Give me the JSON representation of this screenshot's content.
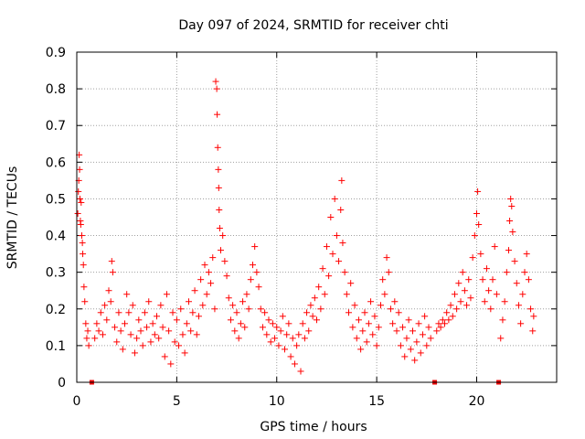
{
  "chart_data": {
    "type": "scatter",
    "title": "Day 097 of 2024, SRMTID for receiver chti",
    "xlabel": "GPS time / hours",
    "ylabel": "SRMTID / TECUs",
    "xlim": [
      0,
      24
    ],
    "ylim": [
      0,
      0.9
    ],
    "xticks": [
      0,
      5,
      10,
      15,
      20
    ],
    "xtick_labels": [
      "0",
      "5",
      "10",
      "15",
      "20"
    ],
    "yticks": [
      0,
      0.1,
      0.2,
      0.3,
      0.4,
      0.5,
      0.6,
      0.7,
      0.8,
      0.9
    ],
    "ytick_labels": [
      "0",
      "0.1",
      "0.2",
      "0.3",
      "0.4",
      "0.5",
      "0.6",
      "0.7",
      "0.8",
      "0.9"
    ],
    "grid": true,
    "marker": "plus",
    "color": "#ff0000",
    "marker_color": "#ee0000",
    "gap_markers_x": [
      0.75,
      17.9,
      21.1
    ],
    "series": [
      {
        "name": "SRMTID",
        "points": [
          [
            0.05,
            0.46
          ],
          [
            0.08,
            0.52
          ],
          [
            0.1,
            0.55
          ],
          [
            0.12,
            0.62
          ],
          [
            0.14,
            0.58
          ],
          [
            0.16,
            0.5
          ],
          [
            0.18,
            0.44
          ],
          [
            0.2,
            0.43
          ],
          [
            0.22,
            0.49
          ],
          [
            0.25,
            0.4
          ],
          [
            0.28,
            0.38
          ],
          [
            0.3,
            0.35
          ],
          [
            0.33,
            0.32
          ],
          [
            0.36,
            0.26
          ],
          [
            0.4,
            0.22
          ],
          [
            0.45,
            0.16
          ],
          [
            0.5,
            0.12
          ],
          [
            0.55,
            0.14
          ],
          [
            0.6,
            0.1
          ],
          [
            0.9,
            0.12
          ],
          [
            1.0,
            0.16
          ],
          [
            1.1,
            0.14
          ],
          [
            1.2,
            0.19
          ],
          [
            1.3,
            0.13
          ],
          [
            1.4,
            0.21
          ],
          [
            1.5,
            0.17
          ],
          [
            1.6,
            0.25
          ],
          [
            1.7,
            0.22
          ],
          [
            1.75,
            0.33
          ],
          [
            1.8,
            0.3
          ],
          [
            1.9,
            0.15
          ],
          [
            2.0,
            0.11
          ],
          [
            2.1,
            0.19
          ],
          [
            2.2,
            0.14
          ],
          [
            2.3,
            0.09
          ],
          [
            2.4,
            0.16
          ],
          [
            2.5,
            0.24
          ],
          [
            2.6,
            0.19
          ],
          [
            2.7,
            0.13
          ],
          [
            2.8,
            0.21
          ],
          [
            2.9,
            0.08
          ],
          [
            3.0,
            0.12
          ],
          [
            3.1,
            0.17
          ],
          [
            3.2,
            0.14
          ],
          [
            3.3,
            0.1
          ],
          [
            3.4,
            0.19
          ],
          [
            3.5,
            0.15
          ],
          [
            3.6,
            0.22
          ],
          [
            3.7,
            0.11
          ],
          [
            3.8,
            0.16
          ],
          [
            3.9,
            0.13
          ],
          [
            4.0,
            0.18
          ],
          [
            4.1,
            0.12
          ],
          [
            4.2,
            0.21
          ],
          [
            4.3,
            0.15
          ],
          [
            4.4,
            0.07
          ],
          [
            4.5,
            0.24
          ],
          [
            4.6,
            0.14
          ],
          [
            4.7,
            0.05
          ],
          [
            4.8,
            0.19
          ],
          [
            4.9,
            0.11
          ],
          [
            5.0,
            0.17
          ],
          [
            5.1,
            0.1
          ],
          [
            5.2,
            0.2
          ],
          [
            5.3,
            0.13
          ],
          [
            5.4,
            0.08
          ],
          [
            5.5,
            0.16
          ],
          [
            5.6,
            0.22
          ],
          [
            5.7,
            0.14
          ],
          [
            5.8,
            0.19
          ],
          [
            5.9,
            0.25
          ],
          [
            6.0,
            0.13
          ],
          [
            6.1,
            0.18
          ],
          [
            6.2,
            0.28
          ],
          [
            6.3,
            0.21
          ],
          [
            6.4,
            0.32
          ],
          [
            6.5,
            0.24
          ],
          [
            6.6,
            0.3
          ],
          [
            6.7,
            0.27
          ],
          [
            6.8,
            0.34
          ],
          [
            6.9,
            0.2
          ],
          [
            6.95,
            0.82
          ],
          [
            7.0,
            0.8
          ],
          [
            7.02,
            0.73
          ],
          [
            7.05,
            0.64
          ],
          [
            7.08,
            0.58
          ],
          [
            7.1,
            0.53
          ],
          [
            7.12,
            0.47
          ],
          [
            7.15,
            0.42
          ],
          [
            7.2,
            0.36
          ],
          [
            7.3,
            0.4
          ],
          [
            7.4,
            0.33
          ],
          [
            7.5,
            0.29
          ],
          [
            7.6,
            0.23
          ],
          [
            7.7,
            0.17
          ],
          [
            7.8,
            0.21
          ],
          [
            7.9,
            0.14
          ],
          [
            8.0,
            0.19
          ],
          [
            8.1,
            0.12
          ],
          [
            8.2,
            0.16
          ],
          [
            8.3,
            0.22
          ],
          [
            8.4,
            0.15
          ],
          [
            8.5,
            0.24
          ],
          [
            8.6,
            0.2
          ],
          [
            8.7,
            0.28
          ],
          [
            8.8,
            0.32
          ],
          [
            8.9,
            0.37
          ],
          [
            9.0,
            0.3
          ],
          [
            9.1,
            0.26
          ],
          [
            9.2,
            0.2
          ],
          [
            9.3,
            0.15
          ],
          [
            9.4,
            0.19
          ],
          [
            9.5,
            0.13
          ],
          [
            9.6,
            0.17
          ],
          [
            9.7,
            0.11
          ],
          [
            9.8,
            0.16
          ],
          [
            9.9,
            0.12
          ],
          [
            10.0,
            0.15
          ],
          [
            10.1,
            0.1
          ],
          [
            10.2,
            0.14
          ],
          [
            10.3,
            0.18
          ],
          [
            10.4,
            0.09
          ],
          [
            10.5,
            0.13
          ],
          [
            10.6,
            0.16
          ],
          [
            10.7,
            0.07
          ],
          [
            10.8,
            0.12
          ],
          [
            10.9,
            0.05
          ],
          [
            11.0,
            0.1
          ],
          [
            11.1,
            0.13
          ],
          [
            11.2,
            0.03
          ],
          [
            11.3,
            0.16
          ],
          [
            11.4,
            0.12
          ],
          [
            11.5,
            0.19
          ],
          [
            11.6,
            0.14
          ],
          [
            11.7,
            0.21
          ],
          [
            11.8,
            0.18
          ],
          [
            11.9,
            0.23
          ],
          [
            12.0,
            0.17
          ],
          [
            12.1,
            0.26
          ],
          [
            12.2,
            0.2
          ],
          [
            12.3,
            0.31
          ],
          [
            12.4,
            0.24
          ],
          [
            12.5,
            0.37
          ],
          [
            12.6,
            0.29
          ],
          [
            12.7,
            0.45
          ],
          [
            12.8,
            0.35
          ],
          [
            12.9,
            0.5
          ],
          [
            13.0,
            0.4
          ],
          [
            13.1,
            0.33
          ],
          [
            13.2,
            0.47
          ],
          [
            13.25,
            0.55
          ],
          [
            13.3,
            0.38
          ],
          [
            13.4,
            0.3
          ],
          [
            13.5,
            0.24
          ],
          [
            13.6,
            0.19
          ],
          [
            13.7,
            0.27
          ],
          [
            13.8,
            0.15
          ],
          [
            13.9,
            0.21
          ],
          [
            14.0,
            0.12
          ],
          [
            14.1,
            0.17
          ],
          [
            14.2,
            0.09
          ],
          [
            14.3,
            0.14
          ],
          [
            14.4,
            0.19
          ],
          [
            14.5,
            0.11
          ],
          [
            14.6,
            0.16
          ],
          [
            14.7,
            0.22
          ],
          [
            14.8,
            0.13
          ],
          [
            14.9,
            0.18
          ],
          [
            15.0,
            0.1
          ],
          [
            15.1,
            0.15
          ],
          [
            15.2,
            0.21
          ],
          [
            15.3,
            0.28
          ],
          [
            15.4,
            0.24
          ],
          [
            15.5,
            0.34
          ],
          [
            15.6,
            0.3
          ],
          [
            15.7,
            0.2
          ],
          [
            15.8,
            0.16
          ],
          [
            15.9,
            0.22
          ],
          [
            16.0,
            0.14
          ],
          [
            16.1,
            0.19
          ],
          [
            16.2,
            0.1
          ],
          [
            16.3,
            0.15
          ],
          [
            16.4,
            0.07
          ],
          [
            16.5,
            0.12
          ],
          [
            16.6,
            0.17
          ],
          [
            16.7,
            0.09
          ],
          [
            16.8,
            0.14
          ],
          [
            16.9,
            0.06
          ],
          [
            17.0,
            0.11
          ],
          [
            17.1,
            0.16
          ],
          [
            17.2,
            0.08
          ],
          [
            17.3,
            0.13
          ],
          [
            17.4,
            0.18
          ],
          [
            17.5,
            0.1
          ],
          [
            17.6,
            0.15
          ],
          [
            17.7,
            0.12
          ],
          [
            18.0,
            0.14
          ],
          [
            18.1,
            0.16
          ],
          [
            18.2,
            0.15
          ],
          [
            18.3,
            0.17
          ],
          [
            18.4,
            0.16
          ],
          [
            18.5,
            0.19
          ],
          [
            18.6,
            0.17
          ],
          [
            18.7,
            0.21
          ],
          [
            18.8,
            0.18
          ],
          [
            18.9,
            0.24
          ],
          [
            19.0,
            0.2
          ],
          [
            19.1,
            0.27
          ],
          [
            19.2,
            0.22
          ],
          [
            19.3,
            0.3
          ],
          [
            19.4,
            0.25
          ],
          [
            19.5,
            0.21
          ],
          [
            19.6,
            0.28
          ],
          [
            19.7,
            0.23
          ],
          [
            19.8,
            0.34
          ],
          [
            19.9,
            0.4
          ],
          [
            20.0,
            0.46
          ],
          [
            20.05,
            0.52
          ],
          [
            20.1,
            0.43
          ],
          [
            20.2,
            0.35
          ],
          [
            20.3,
            0.28
          ],
          [
            20.4,
            0.22
          ],
          [
            20.5,
            0.31
          ],
          [
            20.6,
            0.25
          ],
          [
            20.7,
            0.2
          ],
          [
            20.8,
            0.28
          ],
          [
            20.9,
            0.37
          ],
          [
            21.0,
            0.24
          ],
          [
            21.2,
            0.12
          ],
          [
            21.3,
            0.17
          ],
          [
            21.4,
            0.22
          ],
          [
            21.5,
            0.3
          ],
          [
            21.6,
            0.36
          ],
          [
            21.65,
            0.44
          ],
          [
            21.7,
            0.5
          ],
          [
            21.75,
            0.48
          ],
          [
            21.8,
            0.41
          ],
          [
            21.9,
            0.33
          ],
          [
            22.0,
            0.27
          ],
          [
            22.1,
            0.21
          ],
          [
            22.2,
            0.16
          ],
          [
            22.3,
            0.24
          ],
          [
            22.4,
            0.3
          ],
          [
            22.5,
            0.35
          ],
          [
            22.6,
            0.28
          ],
          [
            22.7,
            0.2
          ],
          [
            22.8,
            0.14
          ],
          [
            22.85,
            0.18
          ]
        ]
      }
    ]
  }
}
